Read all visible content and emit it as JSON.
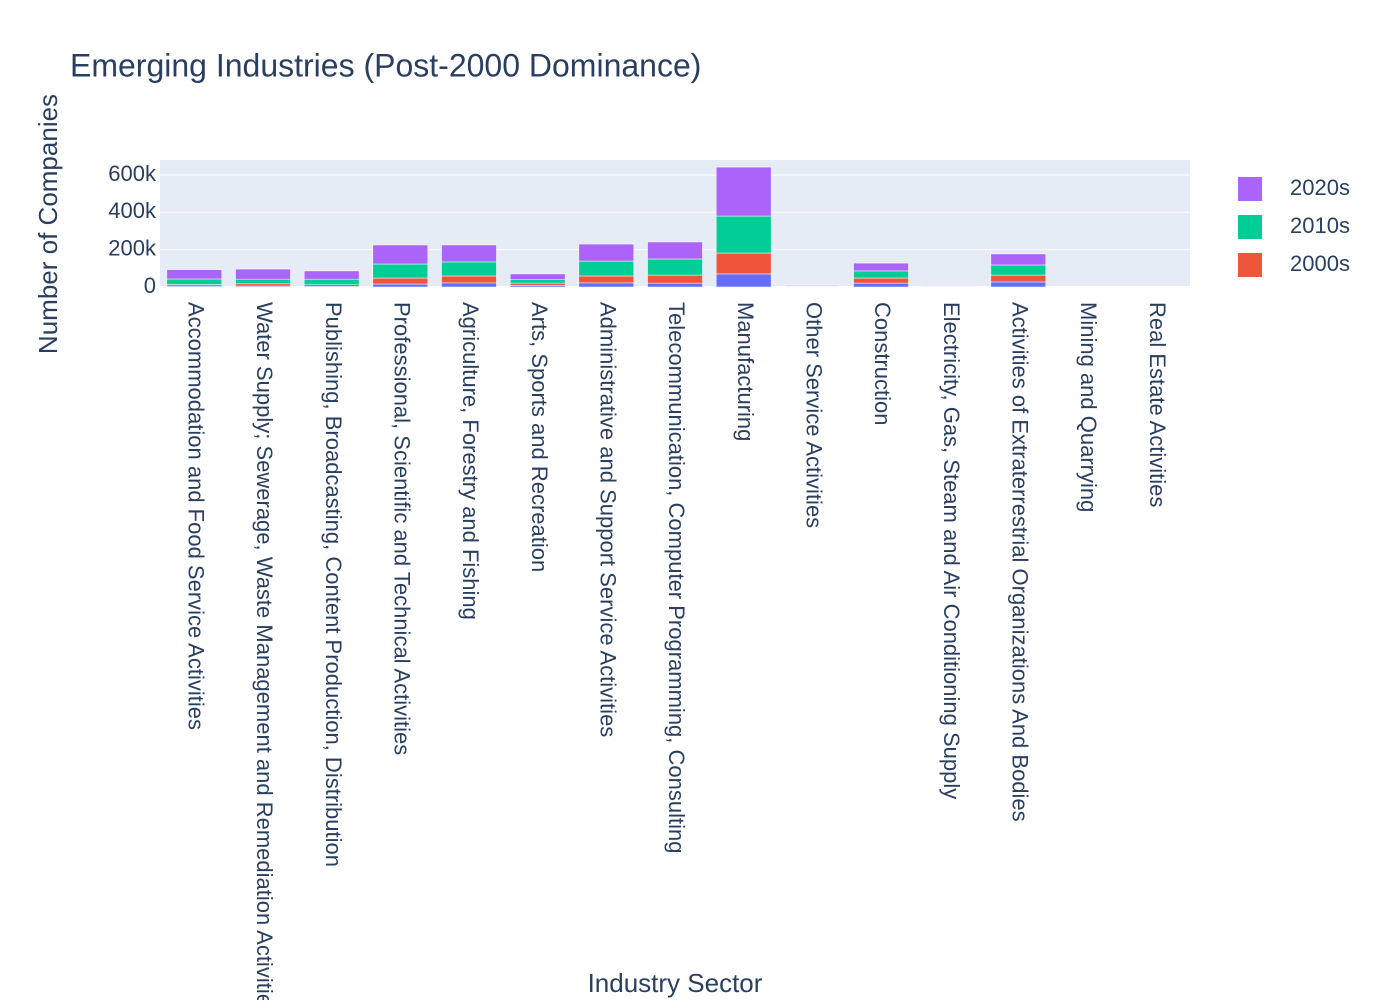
{
  "chart_data": {
    "type": "stacked_bar",
    "title": "Emerging Industries (Post-2000 Dominance)",
    "x_label": "Industry Sector",
    "y_label": "Number of Companies",
    "categories": [
      "Accommodation and Food Service Activities",
      "Water Supply; Sewerage, Waste Management and Remediation Activities",
      "Publishing, Broadcasting, Content Production, Distribution",
      "Professional, Scientific and Technical Activities",
      "Agriculture, Forestry and Fishing",
      "Arts, Sports and Recreation",
      "Administrative and Support Service Activities",
      "Telecommunication, Computer Programming, Consulting",
      "Manufacturing",
      "Other Service Activities",
      "Construction",
      "Electricity, Gas, Steam and Air Conditioning Supply",
      "Activities of Extraterrestrial Organizations And Bodies",
      "Mining and Quarrying",
      "Real Estate Activities"
    ],
    "series": [
      {
        "color": "#636efa",
        "values": [
          5000,
          5000,
          4000,
          16000,
          22000,
          8000,
          22000,
          21000,
          70000,
          3000,
          21000,
          1000,
          27000,
          500,
          300
        ]
      },
      {
        "name": "2000s",
        "color": "#ef553b",
        "values": [
          8000,
          12000,
          8000,
          32000,
          37000,
          13000,
          37000,
          43000,
          112000,
          2000,
          27000,
          500,
          37000,
          500,
          200
        ]
      },
      {
        "name": "2010s",
        "color": "#00cc96",
        "values": [
          30000,
          25000,
          30000,
          75000,
          75000,
          18000,
          80000,
          86000,
          198000,
          2000,
          38000,
          500,
          54000,
          500,
          200
        ]
      },
      {
        "name": "2020s",
        "color": "#ab63fa",
        "values": [
          50000,
          54000,
          44000,
          102000,
          91000,
          31000,
          91000,
          91000,
          262000,
          4000,
          42000,
          1000,
          59000,
          500,
          300
        ]
      }
    ],
    "ylim": [
      0,
      680000
    ],
    "yticks": [
      0,
      {
        "value": 200000,
        "label": "200k"
      },
      {
        "value": 400000,
        "label": "400k"
      },
      {
        "value": 600000,
        "label": "600k"
      }
    ],
    "grid": true
  }
}
